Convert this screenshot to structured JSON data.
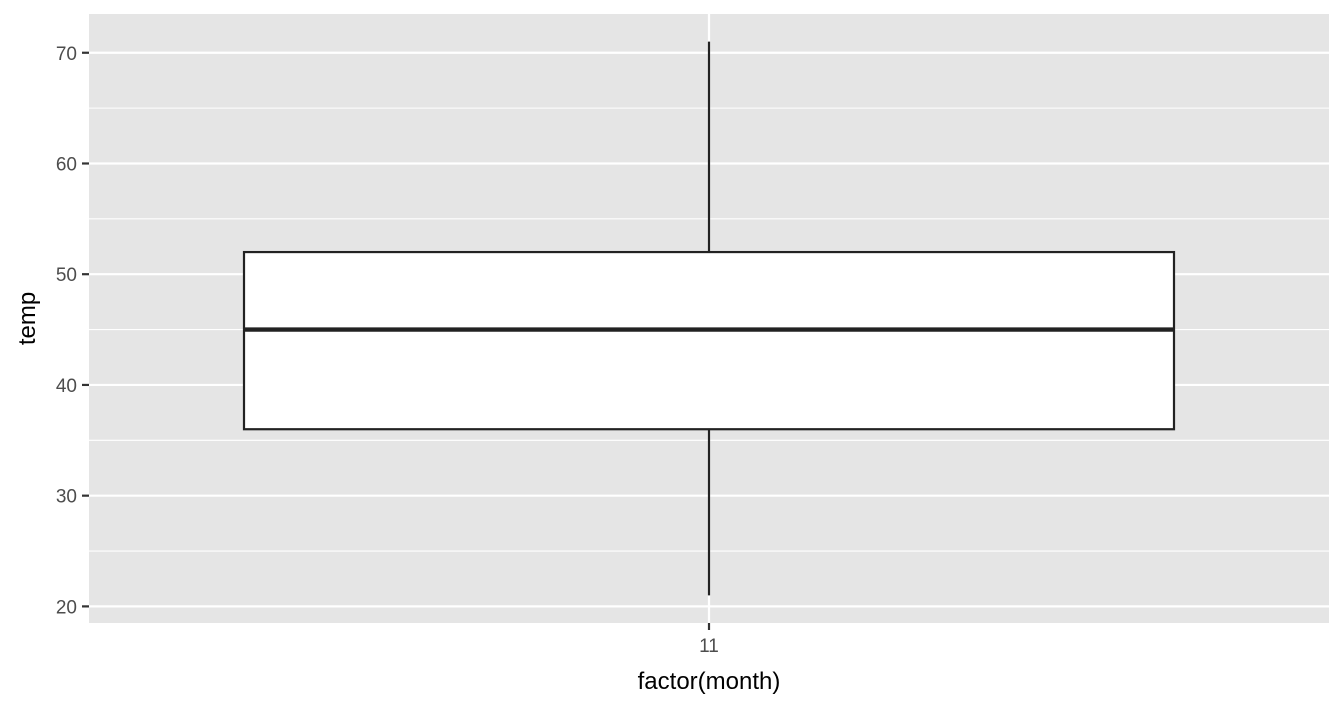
{
  "chart_data": {
    "type": "box",
    "xlabel": "factor(month)",
    "ylabel": "temp",
    "categories": [
      "11"
    ],
    "boxes": [
      {
        "category": "11",
        "whisker_low": 21,
        "q1": 36,
        "median": 45,
        "q3": 52,
        "whisker_high": 71
      }
    ],
    "ylim": [
      18.5,
      73.5
    ],
    "yticks": [
      20,
      30,
      40,
      50,
      60,
      70
    ],
    "grid": true,
    "colors": {
      "panel_background": "#e5e5e5",
      "grid_line": "#ffffff",
      "box_fill": "#ffffff",
      "box_stroke": "#222222",
      "tick_mark": "#333333",
      "tick_label": "#4d4d4d",
      "axis_title": "#000000"
    }
  }
}
